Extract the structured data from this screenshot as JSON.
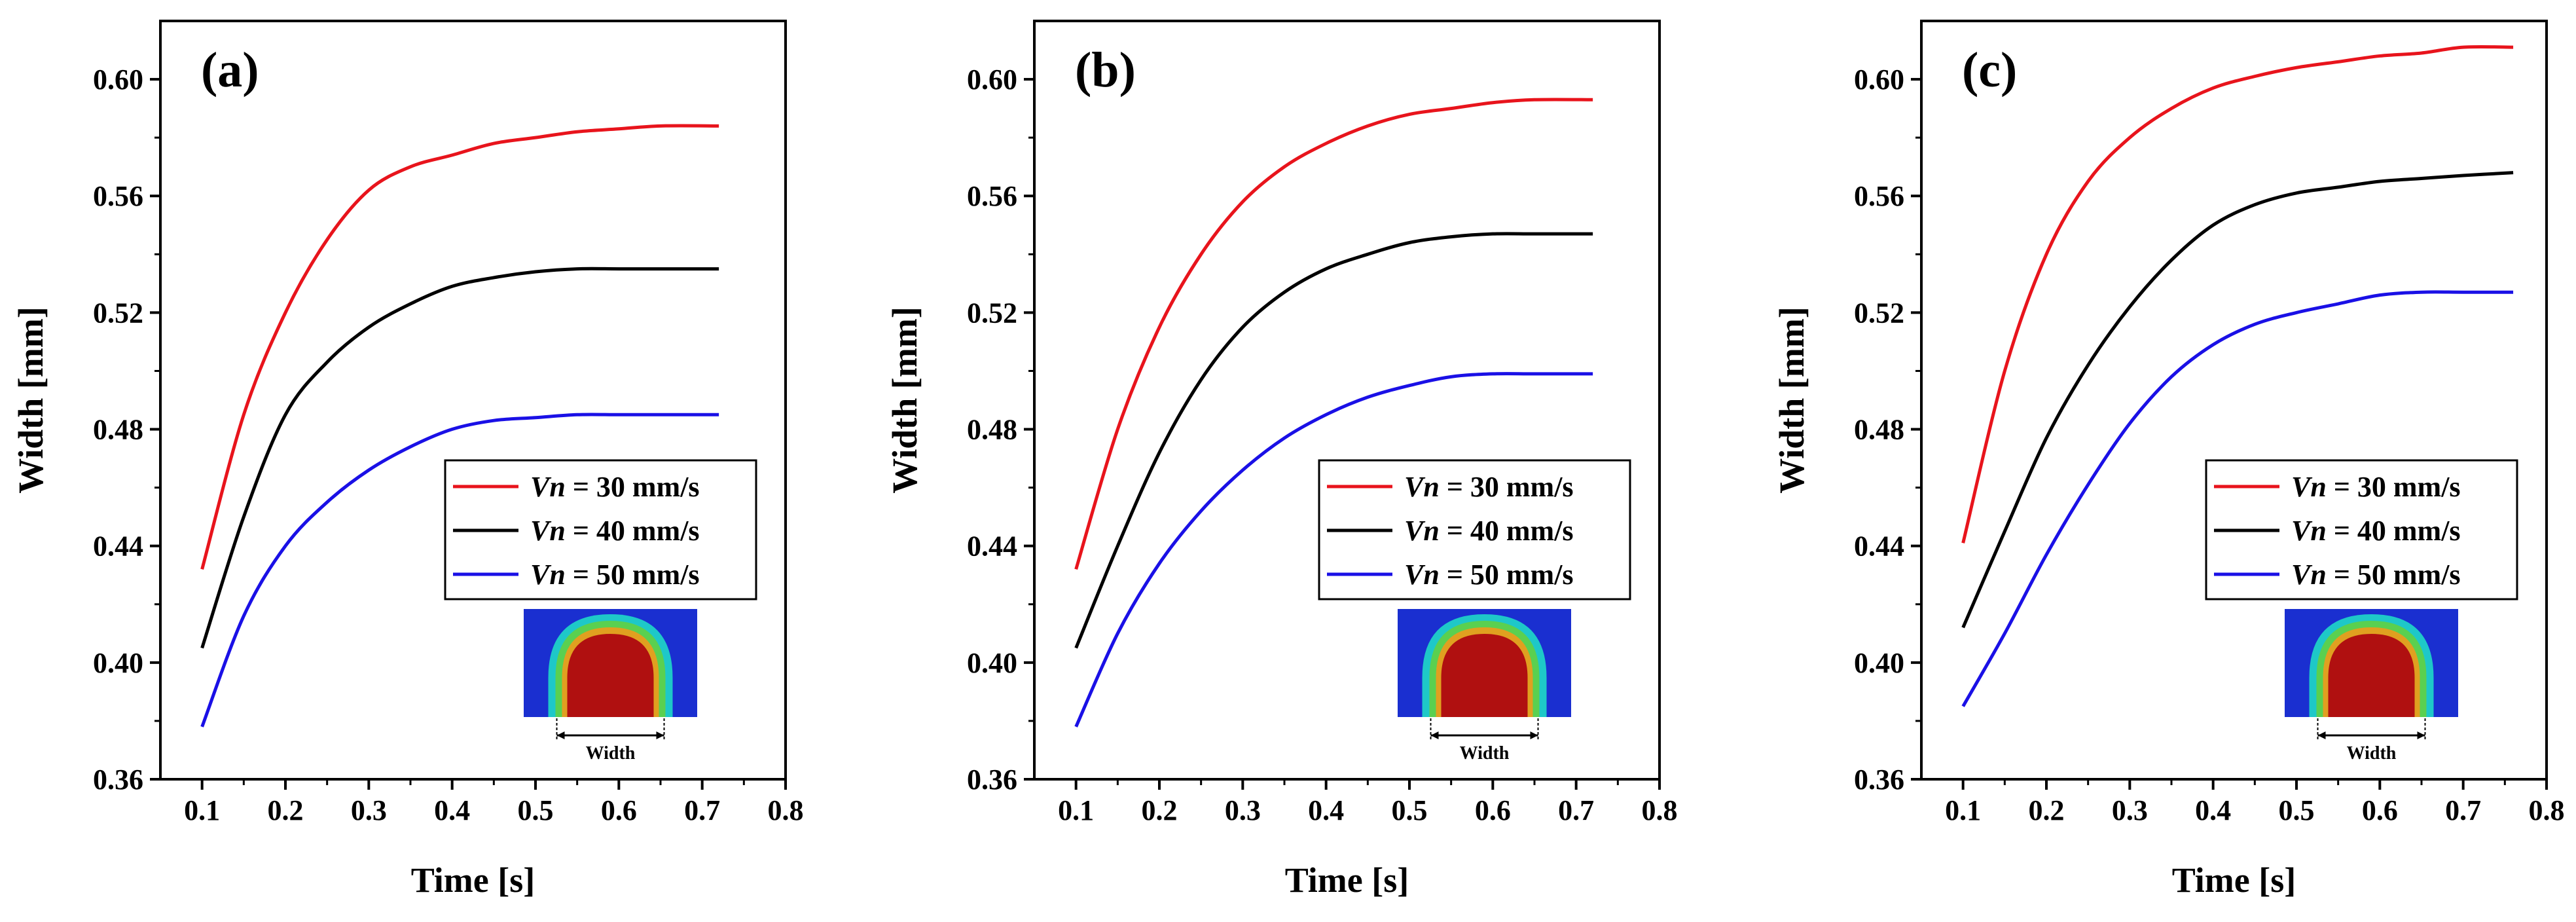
{
  "chart_data": [
    {
      "type": "line",
      "panel_label": "(a)",
      "xlabel": "Time  [s]",
      "ylabel": "Width  [mm]",
      "xlim": [
        0.05,
        0.8
      ],
      "ylim": [
        0.36,
        0.62
      ],
      "xticks": [
        0.1,
        0.2,
        0.3,
        0.4,
        0.5,
        0.6,
        0.7,
        0.8
      ],
      "yticks": [
        0.36,
        0.4,
        0.44,
        0.48,
        0.52,
        0.56,
        0.6
      ],
      "legend_position": "center-right",
      "inset_caption": "Width",
      "series": [
        {
          "name": "Vn = 30 mm/s",
          "var": "Vn",
          "rest": " = 30 mm/s",
          "color": "#e8141c",
          "x": [
            0.1,
            0.15,
            0.2,
            0.25,
            0.3,
            0.35,
            0.4,
            0.45,
            0.5,
            0.55,
            0.6,
            0.65,
            0.72
          ],
          "y": [
            0.432,
            0.485,
            0.52,
            0.545,
            0.562,
            0.57,
            0.574,
            0.578,
            0.58,
            0.582,
            0.583,
            0.584,
            0.584
          ]
        },
        {
          "name": "Vn = 40 mm/s",
          "var": "Vn",
          "rest": " = 40 mm/s",
          "color": "#000000",
          "x": [
            0.1,
            0.15,
            0.2,
            0.25,
            0.3,
            0.35,
            0.4,
            0.45,
            0.5,
            0.55,
            0.6,
            0.65,
            0.72
          ],
          "y": [
            0.405,
            0.45,
            0.485,
            0.503,
            0.515,
            0.523,
            0.529,
            0.532,
            0.534,
            0.535,
            0.535,
            0.535,
            0.535
          ]
        },
        {
          "name": "Vn = 50 mm/s",
          "var": "Vn",
          "rest": " = 50 mm/s",
          "color": "#1a10e6",
          "x": [
            0.1,
            0.15,
            0.2,
            0.25,
            0.3,
            0.35,
            0.4,
            0.45,
            0.5,
            0.55,
            0.6,
            0.65,
            0.72
          ],
          "y": [
            0.378,
            0.416,
            0.44,
            0.455,
            0.466,
            0.474,
            0.48,
            0.483,
            0.484,
            0.485,
            0.485,
            0.485,
            0.485
          ]
        }
      ]
    },
    {
      "type": "line",
      "panel_label": "(b)",
      "xlabel": "Time  [s]",
      "ylabel": "Width  [mm]",
      "xlim": [
        0.05,
        0.8
      ],
      "ylim": [
        0.36,
        0.62
      ],
      "xticks": [
        0.1,
        0.2,
        0.3,
        0.4,
        0.5,
        0.6,
        0.7,
        0.8
      ],
      "yticks": [
        0.36,
        0.4,
        0.44,
        0.48,
        0.52,
        0.56,
        0.6
      ],
      "legend_position": "center-right",
      "inset_caption": "Width",
      "series": [
        {
          "name": "Vn = 30 mm/s",
          "var": "Vn",
          "rest": " = 30 mm/s",
          "color": "#e8141c",
          "x": [
            0.1,
            0.15,
            0.2,
            0.25,
            0.3,
            0.35,
            0.4,
            0.45,
            0.5,
            0.55,
            0.6,
            0.65,
            0.72
          ],
          "y": [
            0.432,
            0.48,
            0.515,
            0.54,
            0.558,
            0.57,
            0.578,
            0.584,
            0.588,
            0.59,
            0.592,
            0.593,
            0.593
          ]
        },
        {
          "name": "Vn = 40 mm/s",
          "var": "Vn",
          "rest": " = 40 mm/s",
          "color": "#000000",
          "x": [
            0.1,
            0.15,
            0.2,
            0.25,
            0.3,
            0.35,
            0.4,
            0.45,
            0.5,
            0.55,
            0.6,
            0.65,
            0.72
          ],
          "y": [
            0.405,
            0.44,
            0.472,
            0.497,
            0.515,
            0.527,
            0.535,
            0.54,
            0.544,
            0.546,
            0.547,
            0.547,
            0.547
          ]
        },
        {
          "name": "Vn = 50 mm/s",
          "var": "Vn",
          "rest": " = 50 mm/s",
          "color": "#1a10e6",
          "x": [
            0.1,
            0.15,
            0.2,
            0.25,
            0.3,
            0.35,
            0.4,
            0.45,
            0.5,
            0.55,
            0.6,
            0.65,
            0.72
          ],
          "y": [
            0.378,
            0.41,
            0.434,
            0.452,
            0.466,
            0.477,
            0.485,
            0.491,
            0.495,
            0.498,
            0.499,
            0.499,
            0.499
          ]
        }
      ]
    },
    {
      "type": "line",
      "panel_label": "(c)",
      "xlabel": "Time  [s]",
      "ylabel": "Width  [mm]",
      "xlim": [
        0.05,
        0.8
      ],
      "ylim": [
        0.36,
        0.62
      ],
      "xticks": [
        0.1,
        0.2,
        0.3,
        0.4,
        0.5,
        0.6,
        0.7,
        0.8
      ],
      "yticks": [
        0.36,
        0.4,
        0.44,
        0.48,
        0.52,
        0.56,
        0.6
      ],
      "legend_position": "center-right",
      "inset_caption": "Width",
      "series": [
        {
          "name": "Vn = 30 mm/s",
          "var": "Vn",
          "rest": " = 30 mm/s",
          "color": "#e8141c",
          "x": [
            0.1,
            0.15,
            0.2,
            0.25,
            0.3,
            0.35,
            0.4,
            0.45,
            0.5,
            0.55,
            0.6,
            0.65,
            0.7,
            0.76
          ],
          "y": [
            0.441,
            0.5,
            0.54,
            0.565,
            0.58,
            0.59,
            0.597,
            0.601,
            0.604,
            0.606,
            0.608,
            0.609,
            0.611,
            0.611
          ]
        },
        {
          "name": "Vn = 40 mm/s",
          "var": "Vn",
          "rest": " = 40 mm/s",
          "color": "#000000",
          "x": [
            0.1,
            0.15,
            0.2,
            0.25,
            0.3,
            0.35,
            0.4,
            0.45,
            0.5,
            0.55,
            0.6,
            0.65,
            0.7,
            0.76
          ],
          "y": [
            0.412,
            0.445,
            0.477,
            0.502,
            0.522,
            0.538,
            0.55,
            0.557,
            0.561,
            0.563,
            0.565,
            0.566,
            0.567,
            0.568
          ]
        },
        {
          "name": "Vn = 50 mm/s",
          "var": "Vn",
          "rest": " = 50 mm/s",
          "color": "#1a10e6",
          "x": [
            0.1,
            0.15,
            0.2,
            0.25,
            0.3,
            0.35,
            0.4,
            0.45,
            0.5,
            0.55,
            0.6,
            0.65,
            0.7,
            0.76
          ],
          "y": [
            0.385,
            0.41,
            0.437,
            0.461,
            0.482,
            0.498,
            0.509,
            0.516,
            0.52,
            0.523,
            0.526,
            0.527,
            0.527,
            0.527
          ]
        }
      ]
    }
  ]
}
